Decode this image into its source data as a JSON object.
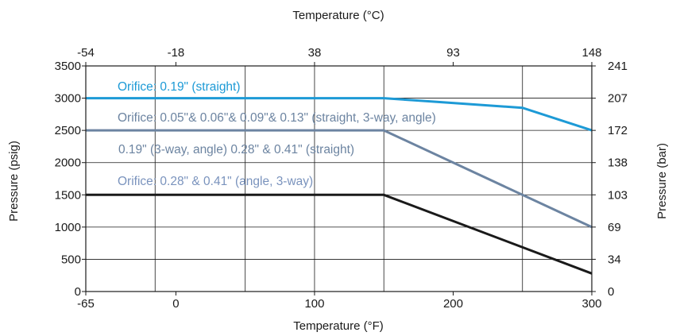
{
  "chart_data": {
    "type": "line",
    "xlabel_bottom": "Temperature (°F)",
    "xlabel_top": "Temperature (°C)",
    "ylabel_left": "Pressure (psig)",
    "ylabel_right": "Pressure (bar)",
    "xlim": [
      -65,
      300
    ],
    "ylim": [
      0,
      3500
    ],
    "grid": true,
    "x_ticks": [
      {
        "value": -65,
        "label": "-65"
      },
      {
        "value": 0,
        "label": "0"
      },
      {
        "value": 100,
        "label": "100"
      },
      {
        "value": 200,
        "label": "200"
      },
      {
        "value": 300,
        "label": "300"
      }
    ],
    "x_gridlines": [
      -15,
      50,
      100,
      150,
      250
    ],
    "x_top_ticks": [
      {
        "value": -65,
        "label": "-54"
      },
      {
        "value": 0,
        "label": "-18"
      },
      {
        "value": 100,
        "label": "38"
      },
      {
        "value": 200,
        "label": "93"
      },
      {
        "value": 300,
        "label": "148"
      }
    ],
    "y_ticks": [
      {
        "value": 0,
        "label": "0"
      },
      {
        "value": 500,
        "label": "500"
      },
      {
        "value": 1000,
        "label": "1000"
      },
      {
        "value": 1500,
        "label": "1500"
      },
      {
        "value": 2000,
        "label": "2000"
      },
      {
        "value": 2500,
        "label": "2500"
      },
      {
        "value": 3000,
        "label": "3000"
      },
      {
        "value": 3500,
        "label": "3500"
      }
    ],
    "y_right_ticks": [
      {
        "value": 0,
        "label": "0"
      },
      {
        "value": 500,
        "label": "34"
      },
      {
        "value": 1000,
        "label": "69"
      },
      {
        "value": 1500,
        "label": "103"
      },
      {
        "value": 2000,
        "label": "138"
      },
      {
        "value": 2500,
        "label": "172"
      },
      {
        "value": 3000,
        "label": "207"
      },
      {
        "value": 3500,
        "label": "241"
      }
    ],
    "series": [
      {
        "name": "Orifice: 0.19\" (straight)",
        "color": "#1d9ad6",
        "x": [
          -65,
          150,
          250,
          300
        ],
        "y": [
          3000,
          3000,
          2850,
          2500
        ]
      },
      {
        "name": "Orifice: 0.05\"& 0.06\"& 0.09\"& 0.13\" (straight, 3-way, angle)",
        "name_line2": "0.19\" (3-way, angle) 0.28\" & 0.41\" (straight)",
        "color": "#6c84a1",
        "x": [
          -65,
          150,
          300
        ],
        "y": [
          2500,
          2500,
          1000
        ]
      },
      {
        "name": "Orifice: 0.28\" & 0.41\" (angle, 3-way)",
        "color": "#1a1a1a",
        "label_color": "#7a93bd",
        "x": [
          -65,
          150,
          300
        ],
        "y": [
          1500,
          1500,
          280
        ]
      }
    ]
  }
}
